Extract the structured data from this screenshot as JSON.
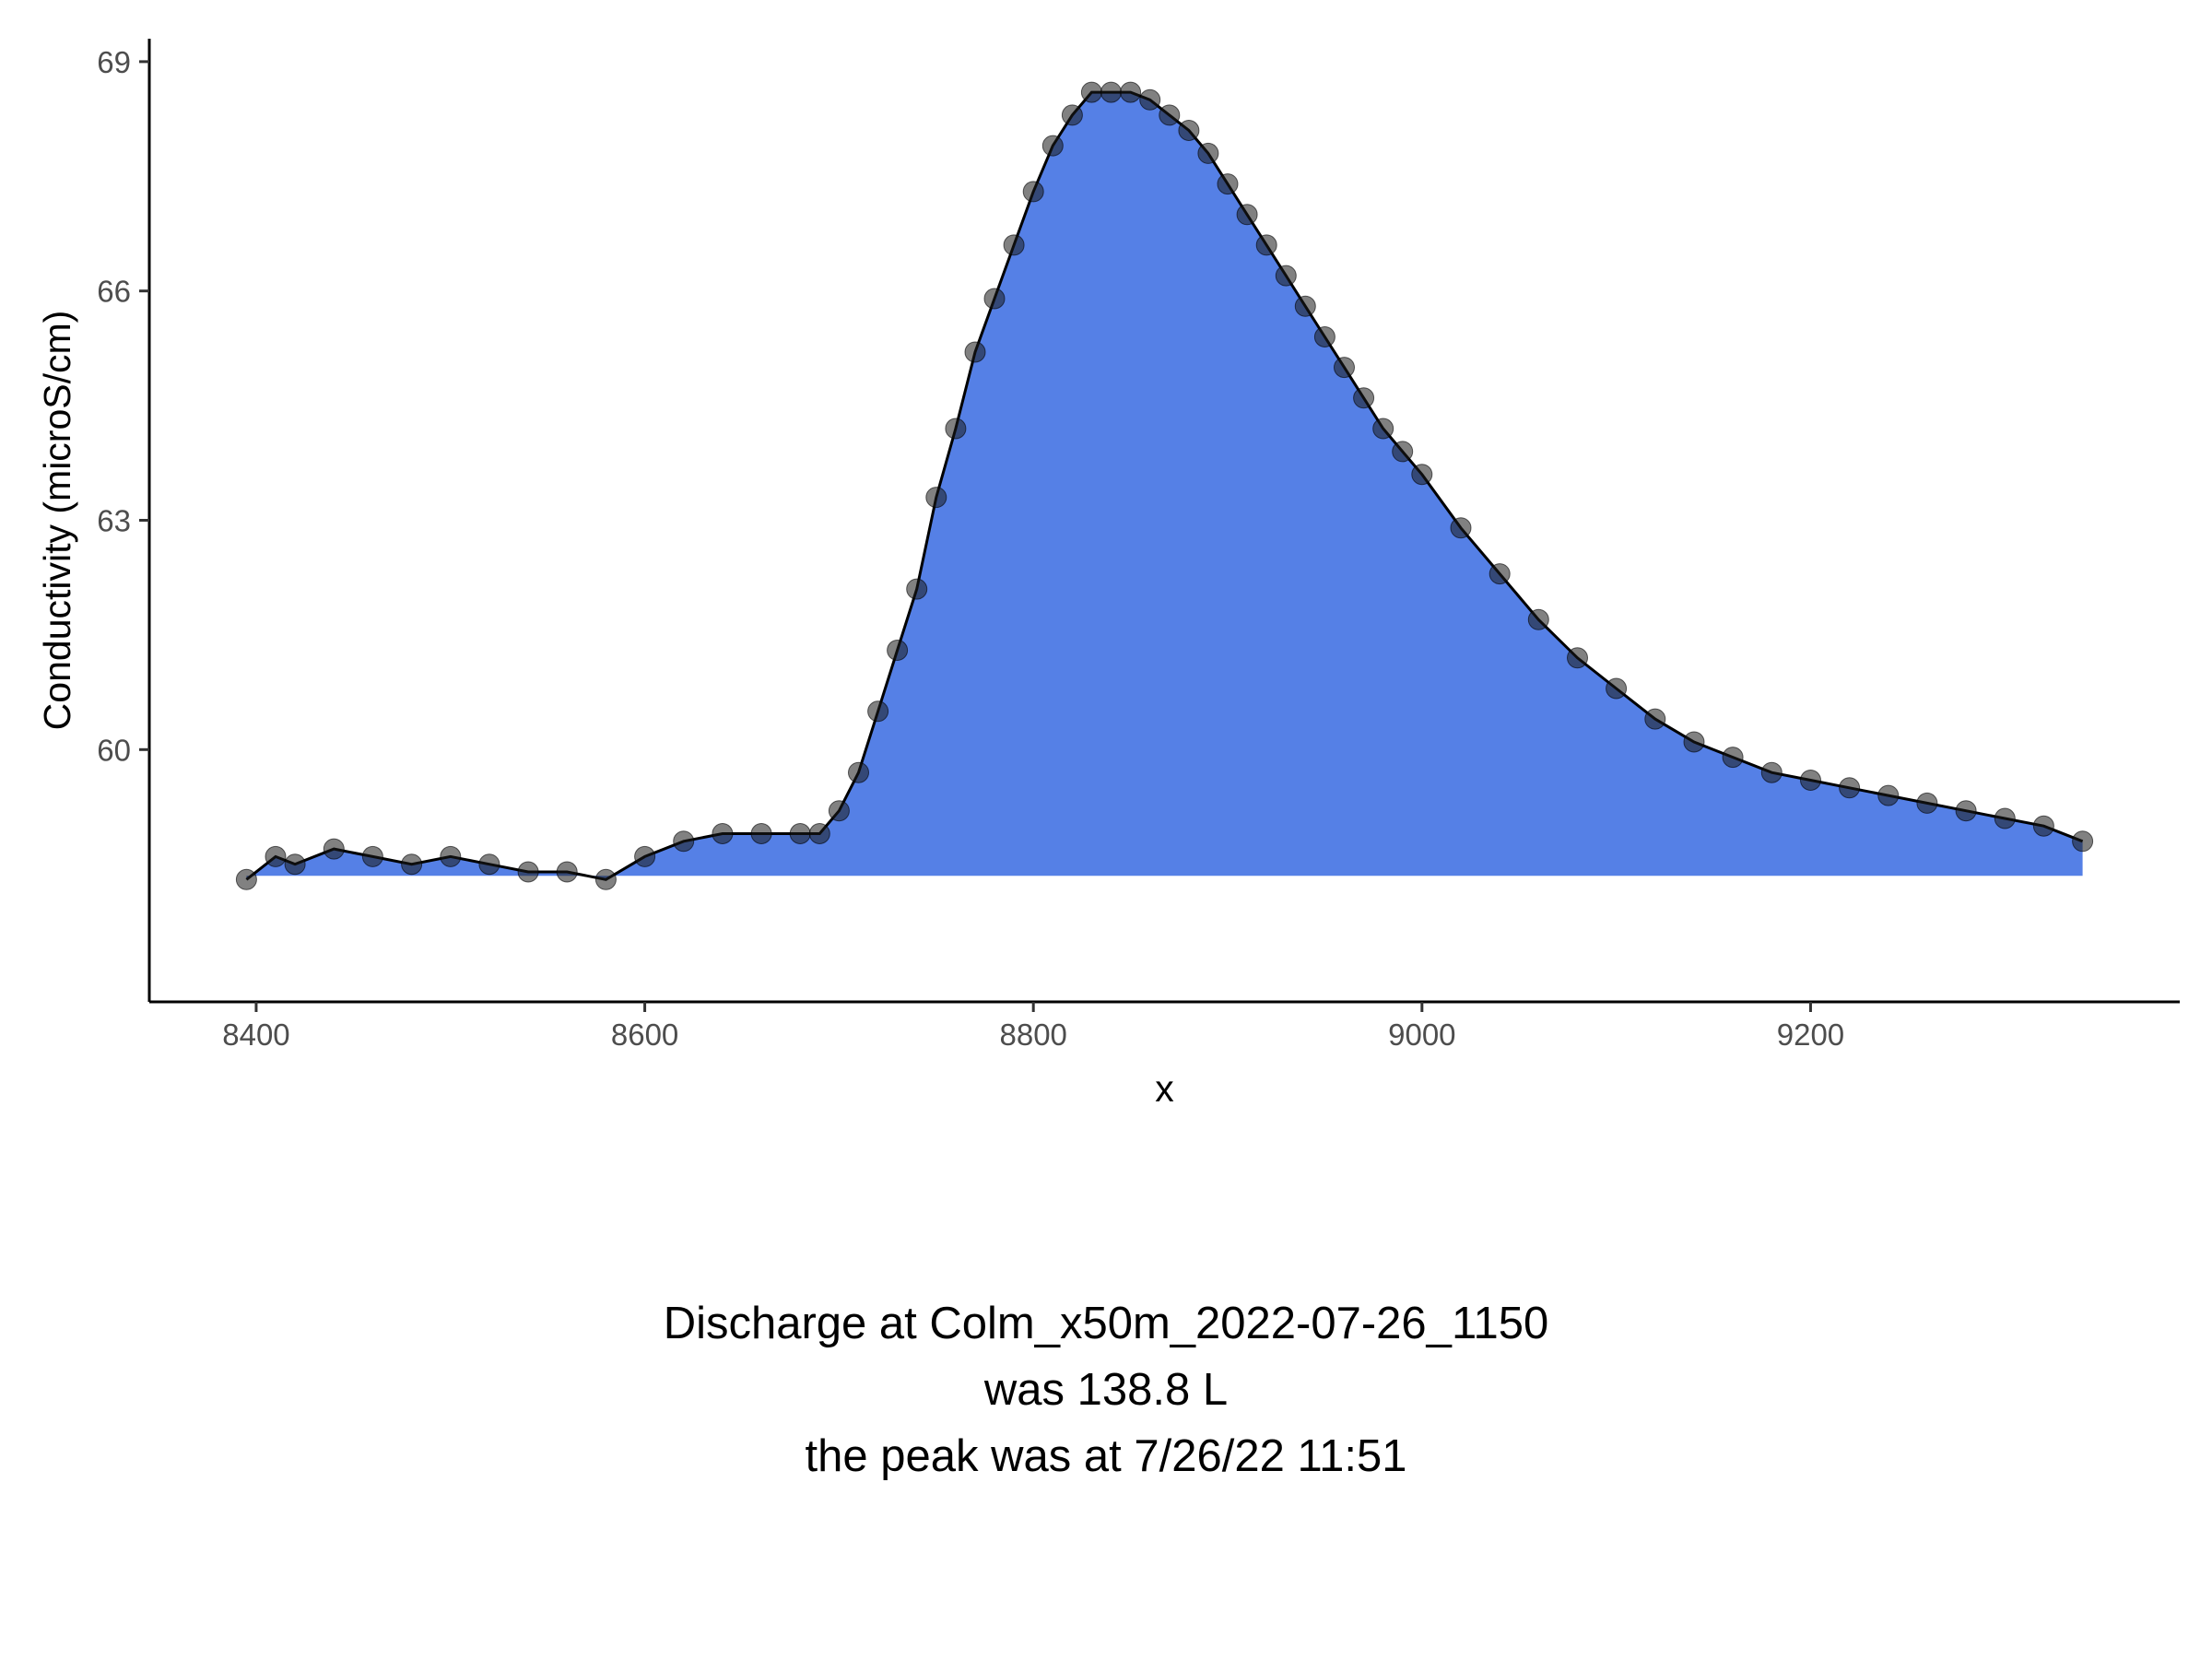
{
  "chart_data": {
    "type": "area",
    "xlabel": "x",
    "ylabel": "Conductivity (microS/cm)",
    "xlim": [
      8345,
      9390
    ],
    "ylim": [
      56.7,
      69.3
    ],
    "x_ticks": [
      8400,
      8600,
      8800,
      9000,
      9200
    ],
    "y_ticks": [
      60,
      63,
      66,
      69
    ],
    "baseline": 58.35,
    "grid": false,
    "legend": "none",
    "colors": {
      "fill": "#5580e6",
      "points": "#1a1a1a"
    },
    "x": [
      8395,
      8410,
      8420,
      8440,
      8460,
      8480,
      8500,
      8520,
      8540,
      8560,
      8580,
      8600,
      8620,
      8640,
      8660,
      8680,
      8690,
      8700,
      8710,
      8720,
      8730,
      8740,
      8750,
      8760,
      8770,
      8780,
      8790,
      8800,
      8810,
      8820,
      8830,
      8840,
      8850,
      8860,
      8870,
      8880,
      8890,
      8900,
      8910,
      8920,
      8930,
      8940,
      8950,
      8960,
      8970,
      8980,
      8990,
      9000,
      9020,
      9040,
      9060,
      9080,
      9100,
      9120,
      9140,
      9160,
      9180,
      9200,
      9220,
      9240,
      9260,
      9280,
      9300,
      9320,
      9340
    ],
    "y": [
      58.3,
      58.6,
      58.5,
      58.7,
      58.6,
      58.5,
      58.6,
      58.5,
      58.4,
      58.4,
      58.3,
      58.6,
      58.8,
      58.9,
      58.9,
      58.9,
      58.9,
      59.2,
      59.7,
      60.5,
      61.3,
      62.1,
      63.3,
      64.2,
      65.2,
      65.9,
      66.6,
      67.3,
      67.9,
      68.3,
      68.6,
      68.6,
      68.6,
      68.5,
      68.3,
      68.1,
      67.8,
      67.4,
      67.0,
      66.6,
      66.2,
      65.8,
      65.4,
      65.0,
      64.6,
      64.2,
      63.9,
      63.6,
      62.9,
      62.3,
      61.7,
      61.2,
      60.8,
      60.4,
      60.1,
      59.9,
      59.7,
      59.6,
      59.5,
      59.4,
      59.3,
      59.2,
      59.1,
      59.0,
      58.8
    ]
  },
  "caption": {
    "line1": "Discharge at Colm_x50m_2022-07-26_1150",
    "line2": "was 138.8  L",
    "line3": "the peak was at  7/26/22 11:51"
  }
}
